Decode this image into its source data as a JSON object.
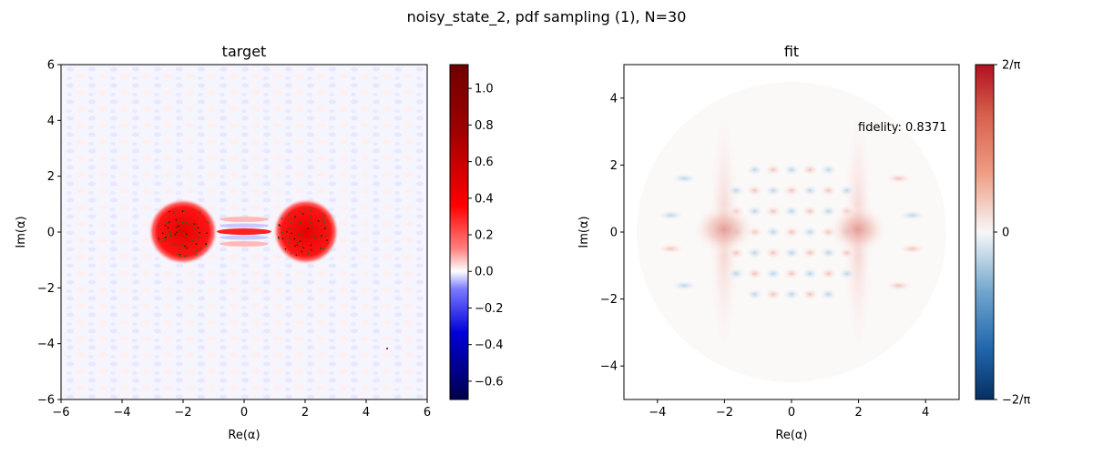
{
  "figure": {
    "suptitle": "noisy_state_2, pdf sampling (1), N=30"
  },
  "chart_data": [
    {
      "type": "heatmap",
      "title": "target",
      "xlabel": "Re(α)",
      "ylabel": "Im(α)",
      "xlim": [
        -6,
        6
      ],
      "ylim": [
        -6,
        6
      ],
      "xticks": [
        -6,
        -4,
        -2,
        0,
        2,
        4,
        6
      ],
      "yticks": [
        -6,
        -4,
        -2,
        0,
        2,
        4,
        6
      ],
      "colorbar": {
        "range": [
          -0.7,
          1.13
        ],
        "ticks": [
          -0.6,
          -0.4,
          -0.2,
          0.0,
          0.2,
          0.4,
          0.6,
          0.8,
          1.0
        ],
        "tick_labels": [
          "−0.6",
          "−0.4",
          "−0.2",
          "0.0",
          "0.2",
          "0.4",
          "0.6",
          "0.8",
          "1.0"
        ],
        "colormap": "seismic"
      },
      "features": {
        "gaussian_peaks_centers": [
          [
            -2,
            0
          ],
          [
            2,
            0
          ]
        ],
        "interference_fringes_x_range": [
          -1,
          1
        ],
        "sample_markers_color": "#1a6e1a",
        "stray_point": [
          4.7,
          -4.2
        ]
      }
    },
    {
      "type": "heatmap",
      "title": "fit",
      "xlabel": "Re(α)",
      "ylabel": "Im(α)",
      "xlim": [
        -5,
        5
      ],
      "ylim": [
        -5,
        5
      ],
      "xticks": [
        -4,
        -2,
        0,
        2,
        4
      ],
      "yticks": [
        -4,
        -2,
        0,
        2,
        4
      ],
      "annotation": "fidelity: 0.8371",
      "colorbar": {
        "range": [
          -0.6366,
          0.6366
        ],
        "tick_labels": [
          "2/π",
          "0",
          "−2/π"
        ],
        "colormap": "RdBu_r"
      },
      "features": {
        "gaussian_peaks_centers": [
          [
            -2,
            0
          ],
          [
            2,
            0
          ]
        ],
        "fidelity": 0.8371
      }
    }
  ],
  "colors": {
    "positive": "#c0111f",
    "negative": "#1f5f8b",
    "target_positive": "#ff0000",
    "target_negative": "#0000ff"
  }
}
